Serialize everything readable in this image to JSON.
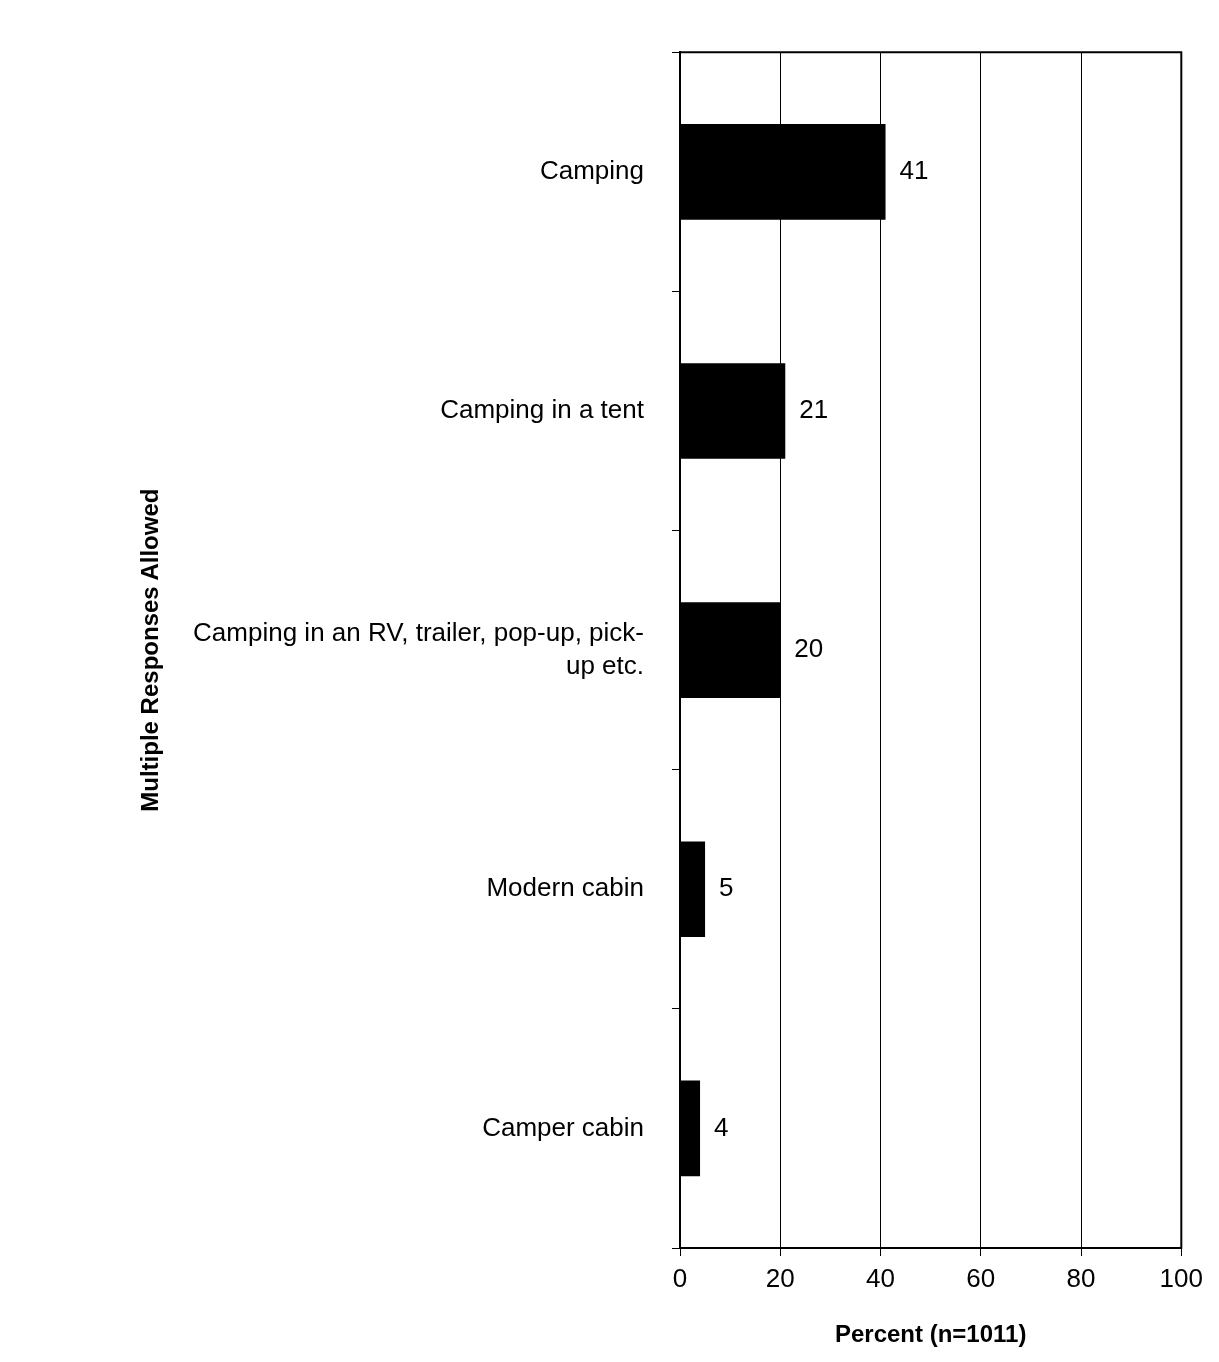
{
  "chart_data": {
    "type": "bar",
    "orientation": "horizontal",
    "categories": [
      "Camping",
      "Camping in a tent",
      "Camping in an RV, trailer, pop-up, pick-up etc.",
      "Modern cabin",
      "Camper cabin"
    ],
    "values": [
      41,
      21,
      20,
      5,
      4
    ],
    "color": "#000000",
    "xlabel": "Percent (n=1011)",
    "ylabel": "Multiple Responses Allowed",
    "xlim": [
      0,
      100
    ],
    "xticks": [
      0,
      20,
      40,
      60,
      80,
      100
    ],
    "grid": "x",
    "legend": false,
    "data_labels": true
  }
}
